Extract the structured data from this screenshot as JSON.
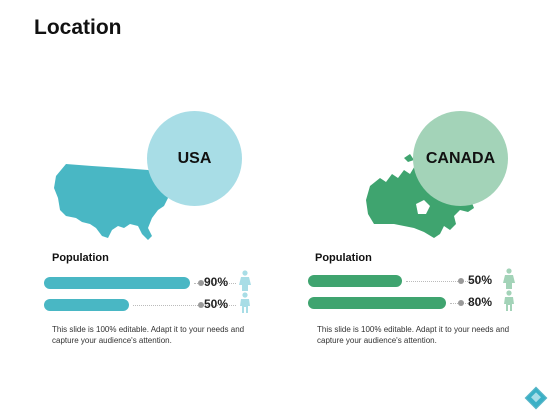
{
  "slide": {
    "title": "Location"
  },
  "colors": {
    "usa_accent": "#49b7c4",
    "usa_circle": "#a8dde6",
    "canada_accent": "#3fa46f",
    "canada_circle": "#a3d3b8",
    "track": "#e6e6e6"
  },
  "panels": [
    {
      "country": "USA",
      "map_icon": "usa-map-icon",
      "population_label": "Population",
      "bars": [
        {
          "percent_label": "90%",
          "value": 0.9,
          "icon": "female-person-icon"
        },
        {
          "percent_label": "50%",
          "value": 0.5,
          "icon": "male-person-icon"
        }
      ],
      "description": "This slide is 100% editable. Adapt it to your needs and capture your audience's attention."
    },
    {
      "country": "CANADA",
      "map_icon": "canada-map-icon",
      "population_label": "Population",
      "bars": [
        {
          "percent_label": "50%",
          "value": 0.5,
          "icon": "female-person-icon"
        },
        {
          "percent_label": "80%",
          "value": 0.8,
          "icon": "male-person-icon"
        }
      ],
      "description": "This slide is 100% editable. Adapt it to your needs and capture your audience's attention."
    }
  ]
}
